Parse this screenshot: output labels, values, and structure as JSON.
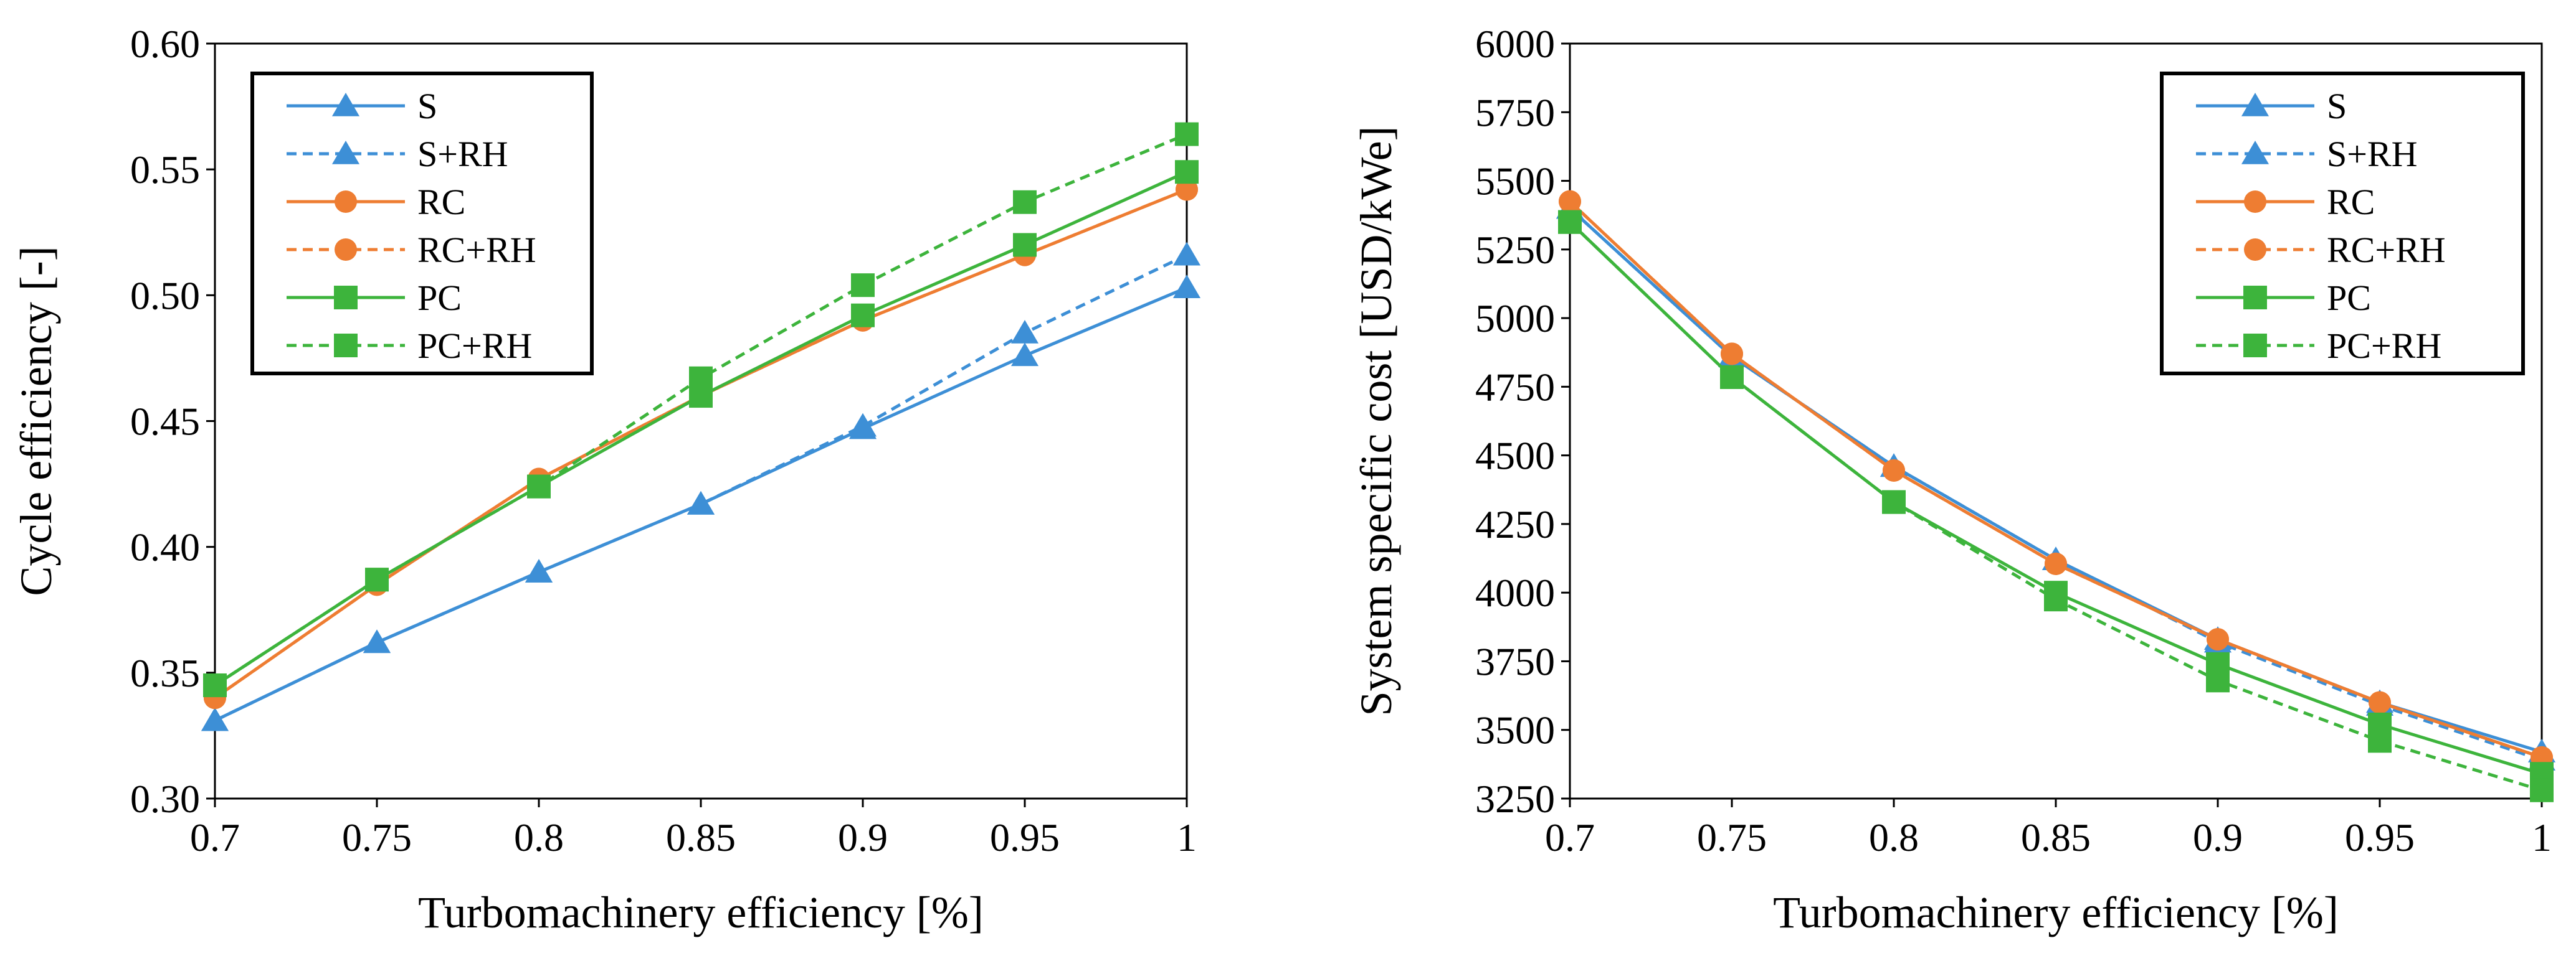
{
  "colors": {
    "blue": "#3D8FD6",
    "orange": "#EE7D32",
    "green": "#3DB43C",
    "axis": "#000000"
  },
  "chart_data": [
    {
      "type": "line",
      "xlabel": "Turbomachinery efficiency [%]",
      "ylabel": "Cycle efficiency [-]",
      "x": [
        0.7,
        0.75,
        0.8,
        0.85,
        0.9,
        0.95,
        1
      ],
      "x_ticks": [
        "0.7",
        "0.75",
        "0.8",
        "0.85",
        "0.9",
        "0.95",
        "1"
      ],
      "xlim": [
        0.7,
        1
      ],
      "ylim": [
        0.3,
        0.6
      ],
      "y_ticks": [
        "0.30",
        "0.35",
        "0.40",
        "0.45",
        "0.50",
        "0.55",
        "0.60"
      ],
      "grid": false,
      "legend_position": "top-left",
      "series": [
        {
          "name": "S",
          "color": "blue",
          "dash": false,
          "marker": "triangle",
          "values": [
            0.331,
            0.362,
            0.39,
            0.417,
            0.447,
            0.476,
            0.503
          ]
        },
        {
          "name": "S+RH",
          "color": "blue",
          "dash": true,
          "marker": "triangle",
          "values": [
            0.331,
            0.362,
            0.39,
            0.417,
            0.448,
            0.485,
            0.516
          ]
        },
        {
          "name": "RC",
          "color": "orange",
          "dash": false,
          "marker": "circle",
          "values": [
            0.34,
            0.385,
            0.427,
            0.46,
            0.49,
            0.516,
            0.542
          ]
        },
        {
          "name": "RC+RH",
          "color": "orange",
          "dash": true,
          "marker": "circle",
          "values": [
            0.34,
            0.385,
            0.427,
            0.46,
            0.49,
            0.516,
            0.542
          ]
        },
        {
          "name": "PC",
          "color": "green",
          "dash": false,
          "marker": "square",
          "values": [
            0.345,
            0.387,
            0.424,
            0.46,
            0.492,
            0.52,
            0.549
          ]
        },
        {
          "name": "PC+RH",
          "color": "green",
          "dash": true,
          "marker": "square",
          "values": [
            0.345,
            0.387,
            0.424,
            0.467,
            0.504,
            0.537,
            0.564
          ]
        }
      ]
    },
    {
      "type": "line",
      "xlabel": "Turbomachinery efficiency [%]",
      "ylabel": "System specific cost [USD/kWe]",
      "x": [
        0.7,
        0.75,
        0.8,
        0.85,
        0.9,
        0.95,
        1
      ],
      "x_ticks": [
        "0.7",
        "0.75",
        "0.8",
        "0.85",
        "0.9",
        "0.95",
        "1"
      ],
      "xlim": [
        0.7,
        1
      ],
      "ylim": [
        3250,
        6000
      ],
      "y_ticks": [
        "3250",
        "3500",
        "3750",
        "4000",
        "4250",
        "4500",
        "4750",
        "5000",
        "5250",
        "5500",
        "5750",
        "6000"
      ],
      "grid": false,
      "legend_position": "top-right",
      "series": [
        {
          "name": "S",
          "color": "blue",
          "dash": false,
          "marker": "triangle",
          "values": [
            5400,
            4860,
            4460,
            4120,
            3830,
            3600,
            3420
          ]
        },
        {
          "name": "S+RH",
          "color": "blue",
          "dash": true,
          "marker": "triangle",
          "values": [
            5400,
            4860,
            4460,
            4120,
            3820,
            3590,
            3390
          ]
        },
        {
          "name": "RC",
          "color": "orange",
          "dash": false,
          "marker": "circle",
          "values": [
            5425,
            4870,
            4445,
            4105,
            3830,
            3600,
            3400
          ]
        },
        {
          "name": "RC+RH",
          "color": "orange",
          "dash": true,
          "marker": "circle",
          "values": [
            5425,
            4870,
            4445,
            4105,
            3830,
            3600,
            3400
          ]
        },
        {
          "name": "PC",
          "color": "green",
          "dash": false,
          "marker": "square",
          "values": [
            5350,
            4785,
            4330,
            4000,
            3740,
            3520,
            3340
          ]
        },
        {
          "name": "PC+RH",
          "color": "green",
          "dash": true,
          "marker": "square",
          "values": [
            5350,
            4785,
            4330,
            3975,
            3680,
            3460,
            3280
          ]
        }
      ]
    }
  ]
}
